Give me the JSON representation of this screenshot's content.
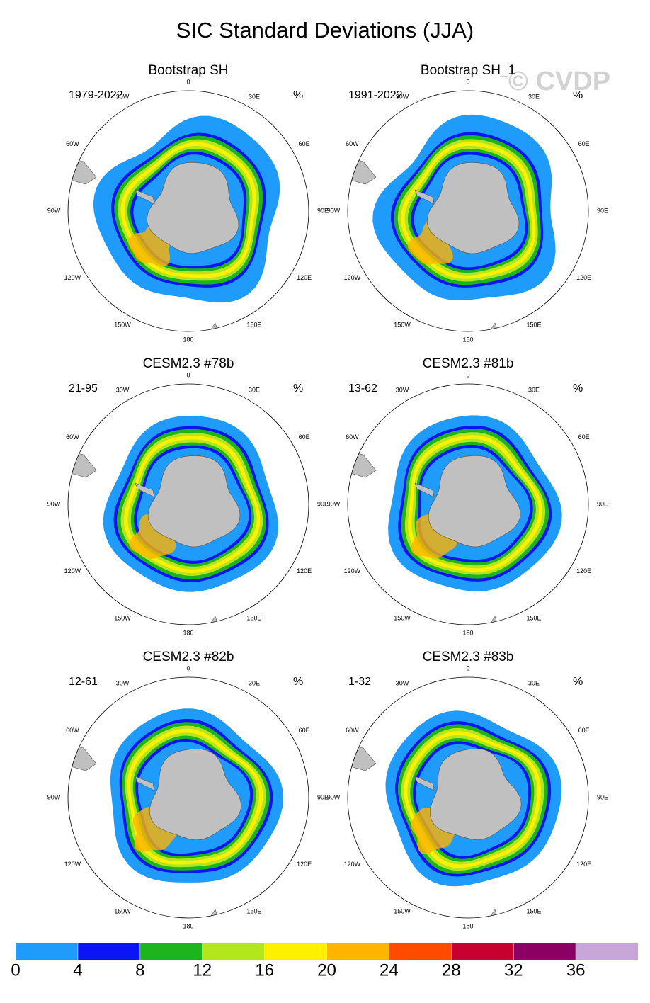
{
  "title": "SIC Standard Deviations (JJA)",
  "watermark": "© CVDP",
  "panels": [
    {
      "title": "Bootstrap SH",
      "period": "1979-2022",
      "units": "%"
    },
    {
      "title": "Bootstrap SH_1",
      "period": "1991-2022",
      "units": "%"
    },
    {
      "title": "CESM2.3 #78b",
      "period": "21-95",
      "units": "%"
    },
    {
      "title": "CESM2.3 #81b",
      "period": "13-62",
      "units": "%"
    },
    {
      "title": "CESM2.3 #82b",
      "period": "12-61",
      "units": "%"
    },
    {
      "title": "CESM2.3 #83b",
      "period": "1-32",
      "units": "%"
    }
  ],
  "longitude_labels": [
    "0",
    "30E",
    "60E",
    "90E",
    "120E",
    "150E",
    "180",
    "150W",
    "120W",
    "90W",
    "60W",
    "30W"
  ],
  "colorbar": {
    "levels": [
      0,
      4,
      8,
      12,
      16,
      20,
      24,
      28,
      32,
      36
    ],
    "colors": [
      "#1e9bfb",
      "#0a14f5",
      "#1eb41e",
      "#b4e61e",
      "#fff000",
      "#ffb400",
      "#ff4b00",
      "#c80032",
      "#8c0064",
      "#c8a6d8"
    ]
  }
}
